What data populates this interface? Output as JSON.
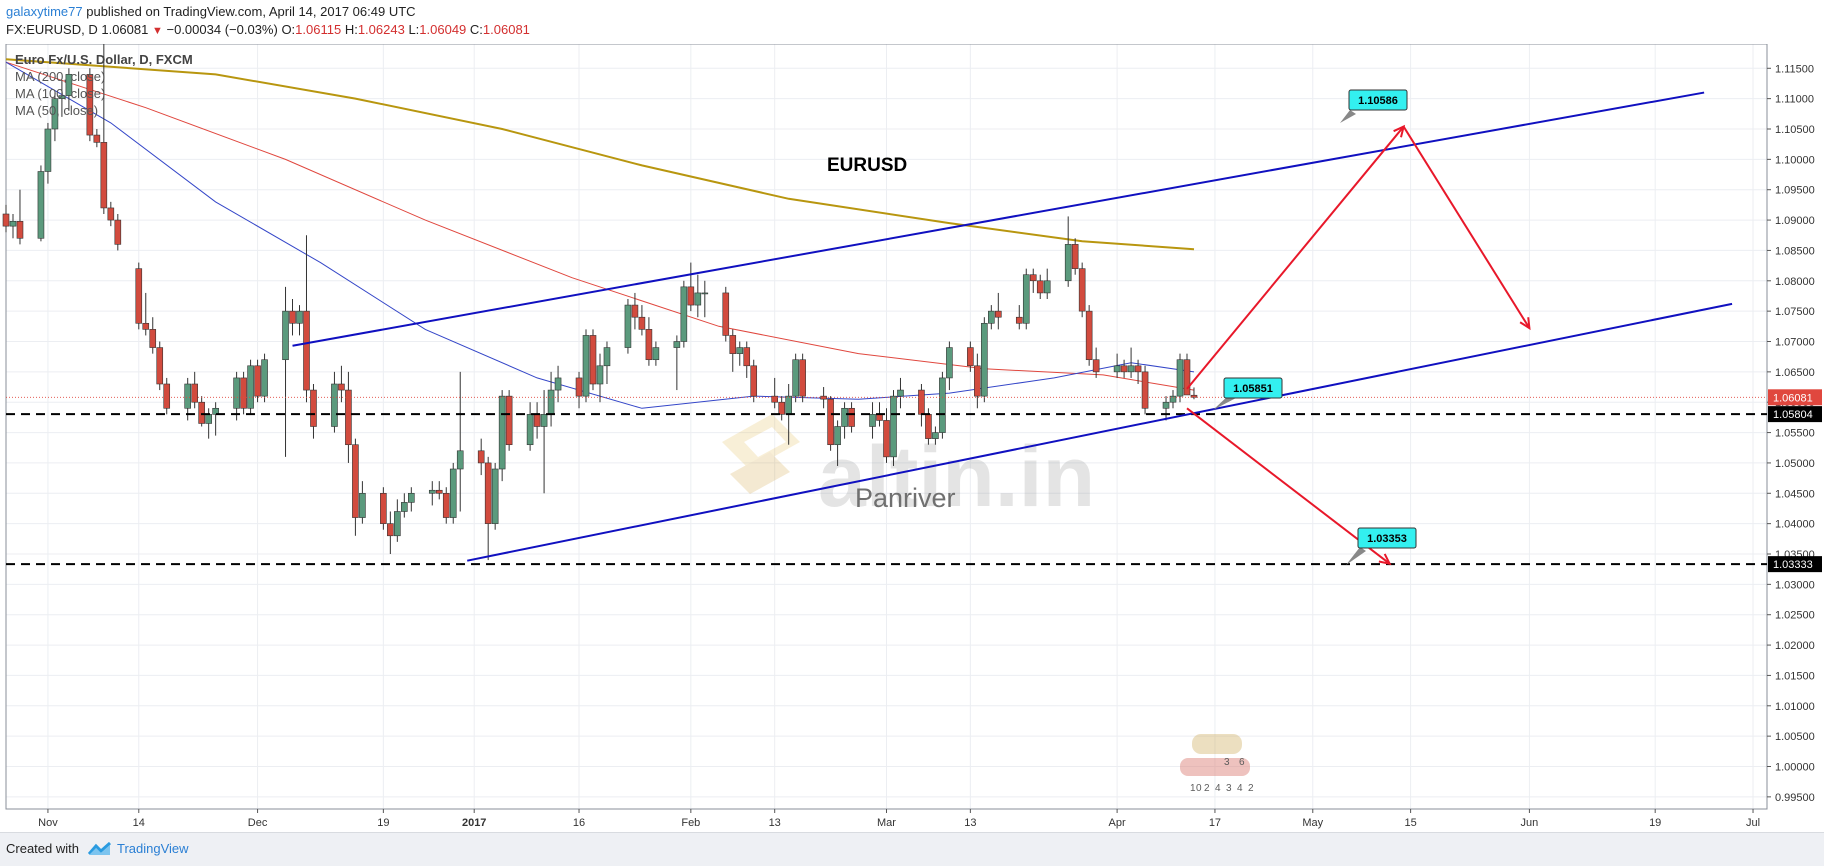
{
  "header": {
    "user": "galaxytime77",
    "published_text": "published on TradingView.com, April 14, 2017 06:49 UTC",
    "symbol": "FX:EURUSD, D",
    "last": "1.06081",
    "change": "−0.00034 (−0.03%)",
    "open_label": "O:",
    "open": "1.06115",
    "high_label": "H:",
    "high": "1.06243",
    "low_label": "L:",
    "low": "1.06049",
    "close_label": "C:",
    "close": "1.06081"
  },
  "legend": {
    "instrument": "Euro Fx/U.S. Dollar, D, FXCM",
    "ma200": "MA (200, close)",
    "ma100": "MA (100, close)",
    "ma50": "MA (50, close)"
  },
  "annotations": {
    "title": "EURUSD",
    "watermark_brand": "altin.in",
    "author": "Panriver",
    "target_high": "1.10586",
    "pivot": "1.05851",
    "target_low": "1.03353",
    "watermark_numbers": [
      "3",
      "6",
      "1",
      "0",
      "2",
      "4",
      "3",
      "4",
      "2"
    ]
  },
  "price_scale": {
    "ticks": [
      "1.11500",
      "1.11000",
      "1.10500",
      "1.10000",
      "1.09500",
      "1.09000",
      "1.08500",
      "1.08000",
      "1.07500",
      "1.07000",
      "1.06500",
      "1.06000",
      "1.05500",
      "1.05000",
      "1.04500",
      "1.04000",
      "1.03500",
      "1.03000",
      "1.02500",
      "1.02000",
      "1.01500",
      "1.01000",
      "1.00500",
      "1.00000",
      "0.99500"
    ],
    "last_price_label": "1.06081",
    "level_upper_label": "1.05804",
    "level_lower_label": "1.03333"
  },
  "time_scale": {
    "labels": [
      "Nov",
      "14",
      "Dec",
      "19",
      "2017",
      "16",
      "Feb",
      "13",
      "Mar",
      "13",
      "Apr",
      "17",
      "May",
      "15",
      "Jun",
      "19",
      "Jul"
    ]
  },
  "colors": {
    "up": "#5b9a7d",
    "down": "#d24b3e",
    "ma200": "#b8960f",
    "ma100": "#e0473e",
    "ma50": "#3446c8",
    "channel": "#1010c0",
    "projection": "#e8182a",
    "callout": "#33f0f0"
  },
  "footer": {
    "created_with": "Created with",
    "brand": "TradingView"
  },
  "chart_data": {
    "type": "candlestick",
    "title": "EURUSD",
    "instrument": "Euro Fx/U.S. Dollar, D, FXCM",
    "ylim": [
      0.993,
      1.119
    ],
    "grid": true,
    "x_start": "2016-10-26",
    "x_end": "2017-07-05",
    "candles": [
      [
        "2016-10-26",
        1.091,
        1.0925,
        1.088,
        1.089
      ],
      [
        "2016-10-27",
        1.089,
        1.091,
        1.087,
        1.0898
      ],
      [
        "2016-10-28",
        1.0898,
        1.095,
        1.086,
        1.087
      ],
      [
        "2016-10-31",
        1.087,
        1.099,
        1.0865,
        1.098
      ],
      [
        "2016-11-01",
        1.098,
        1.106,
        1.096,
        1.105
      ],
      [
        "2016-11-02",
        1.105,
        1.111,
        1.103,
        1.11
      ],
      [
        "2016-11-03",
        1.11,
        1.113,
        1.107,
        1.1105
      ],
      [
        "2016-11-04",
        1.1105,
        1.115,
        1.108,
        1.114
      ],
      [
        "2016-11-07",
        1.114,
        1.115,
        1.103,
        1.104
      ],
      [
        "2016-11-08",
        1.104,
        1.105,
        1.102,
        1.1028
      ],
      [
        "2016-11-09",
        1.1028,
        1.13,
        1.091,
        1.092
      ],
      [
        "2016-11-10",
        1.092,
        1.093,
        1.089,
        1.09
      ],
      [
        "2016-11-11",
        1.09,
        1.091,
        1.085,
        1.086
      ],
      [
        "2016-11-14",
        1.082,
        1.083,
        1.072,
        1.073
      ],
      [
        "2016-11-15",
        1.073,
        1.078,
        1.071,
        1.072
      ],
      [
        "2016-11-16",
        1.072,
        1.074,
        1.068,
        1.069
      ],
      [
        "2016-11-17",
        1.069,
        1.07,
        1.062,
        1.063
      ],
      [
        "2016-11-18",
        1.063,
        1.064,
        1.058,
        1.059
      ],
      [
        "2016-11-21",
        1.059,
        1.064,
        1.057,
        1.063
      ],
      [
        "2016-11-22",
        1.063,
        1.065,
        1.059,
        1.06
      ],
      [
        "2016-11-23",
        1.06,
        1.061,
        1.056,
        1.0565
      ],
      [
        "2016-11-24",
        1.0565,
        1.059,
        1.054,
        1.058
      ],
      [
        "2016-11-25",
        1.058,
        1.06,
        1.0545,
        1.059
      ],
      [
        "2016-11-28",
        1.059,
        1.065,
        1.057,
        1.064
      ],
      [
        "2016-11-29",
        1.064,
        1.065,
        1.058,
        1.059
      ],
      [
        "2016-11-30",
        1.059,
        1.067,
        1.058,
        1.066
      ],
      [
        "2016-12-01",
        1.066,
        1.067,
        1.06,
        1.061
      ],
      [
        "2016-12-02",
        1.061,
        1.068,
        1.06,
        1.067
      ],
      [
        "2016-12-05",
        1.067,
        1.079,
        1.051,
        1.075
      ],
      [
        "2016-12-06",
        1.075,
        1.077,
        1.071,
        1.073
      ],
      [
        "2016-12-07",
        1.073,
        1.076,
        1.071,
        1.075
      ],
      [
        "2016-12-08",
        1.075,
        1.0875,
        1.06,
        1.062
      ],
      [
        "2016-12-09",
        1.062,
        1.063,
        1.054,
        1.056
      ],
      [
        "2016-12-12",
        1.056,
        1.065,
        1.055,
        1.063
      ],
      [
        "2016-12-13",
        1.063,
        1.066,
        1.06,
        1.062
      ],
      [
        "2016-12-14",
        1.062,
        1.065,
        1.05,
        1.053
      ],
      [
        "2016-12-15",
        1.053,
        1.054,
        1.038,
        1.041
      ],
      [
        "2016-12-16",
        1.041,
        1.047,
        1.04,
        1.045
      ],
      [
        "2016-12-19",
        1.045,
        1.046,
        1.039,
        1.04
      ],
      [
        "2016-12-20",
        1.04,
        1.042,
        1.035,
        1.038
      ],
      [
        "2016-12-21",
        1.038,
        1.044,
        1.037,
        1.042
      ],
      [
        "2016-12-22",
        1.042,
        1.045,
        1.041,
        1.0435
      ],
      [
        "2016-12-23",
        1.0435,
        1.046,
        1.042,
        1.045
      ],
      [
        "2016-12-26",
        1.045,
        1.047,
        1.043,
        1.0455
      ],
      [
        "2016-12-27",
        1.0455,
        1.047,
        1.044,
        1.045
      ],
      [
        "2016-12-28",
        1.045,
        1.046,
        1.04,
        1.041
      ],
      [
        "2016-12-29",
        1.041,
        1.05,
        1.04,
        1.049
      ],
      [
        "2016-12-30",
        1.049,
        1.065,
        1.042,
        1.052
      ],
      [
        "2017-01-02",
        1.052,
        1.054,
        1.048,
        1.05
      ],
      [
        "2017-01-03",
        1.05,
        1.051,
        1.034,
        1.04
      ],
      [
        "2017-01-04",
        1.04,
        1.05,
        1.039,
        1.049
      ],
      [
        "2017-01-05",
        1.049,
        1.062,
        1.047,
        1.061
      ],
      [
        "2017-01-06",
        1.061,
        1.062,
        1.052,
        1.053
      ],
      [
        "2017-01-09",
        1.053,
        1.06,
        1.052,
        1.058
      ],
      [
        "2017-01-10",
        1.058,
        1.06,
        1.054,
        1.056
      ],
      [
        "2017-01-11",
        1.056,
        1.062,
        1.045,
        1.058
      ],
      [
        "2017-01-12",
        1.058,
        1.065,
        1.056,
        1.062
      ],
      [
        "2017-01-13",
        1.062,
        1.066,
        1.06,
        1.064
      ],
      [
        "2017-01-16",
        1.064,
        1.065,
        1.059,
        1.061
      ],
      [
        "2017-01-17",
        1.061,
        1.072,
        1.06,
        1.071
      ],
      [
        "2017-01-18",
        1.071,
        1.072,
        1.062,
        1.063
      ],
      [
        "2017-01-19",
        1.063,
        1.068,
        1.06,
        1.066
      ],
      [
        "2017-01-20",
        1.066,
        1.07,
        1.063,
        1.069
      ],
      [
        "2017-01-23",
        1.069,
        1.077,
        1.068,
        1.076
      ],
      [
        "2017-01-24",
        1.076,
        1.078,
        1.072,
        1.074
      ],
      [
        "2017-01-25",
        1.074,
        1.076,
        1.071,
        1.072
      ],
      [
        "2017-01-26",
        1.072,
        1.074,
        1.066,
        1.067
      ],
      [
        "2017-01-27",
        1.067,
        1.07,
        1.066,
        1.069
      ],
      [
        "2017-01-30",
        1.069,
        1.071,
        1.062,
        1.07
      ],
      [
        "2017-01-31",
        1.07,
        1.08,
        1.069,
        1.079
      ],
      [
        "2017-02-01",
        1.079,
        1.083,
        1.075,
        1.076
      ],
      [
        "2017-02-02",
        1.076,
        1.081,
        1.074,
        1.078
      ],
      [
        "2017-02-03",
        1.078,
        1.08,
        1.074,
        1.078
      ],
      [
        "2017-02-06",
        1.078,
        1.079,
        1.07,
        1.071
      ],
      [
        "2017-02-07",
        1.071,
        1.072,
        1.065,
        1.068
      ],
      [
        "2017-02-08",
        1.068,
        1.07,
        1.066,
        1.069
      ],
      [
        "2017-02-09",
        1.069,
        1.07,
        1.064,
        1.066
      ],
      [
        "2017-02-10",
        1.066,
        1.067,
        1.06,
        1.061
      ],
      [
        "2017-02-13",
        1.061,
        1.064,
        1.059,
        1.06
      ],
      [
        "2017-02-14",
        1.06,
        1.061,
        1.057,
        1.058
      ],
      [
        "2017-02-15",
        1.058,
        1.063,
        1.053,
        1.061
      ],
      [
        "2017-02-16",
        1.061,
        1.068,
        1.06,
        1.067
      ],
      [
        "2017-02-17",
        1.067,
        1.068,
        1.06,
        1.061
      ],
      [
        "2017-02-20",
        1.061,
        1.0625,
        1.059,
        1.0605
      ],
      [
        "2017-02-21",
        1.0605,
        1.061,
        1.052,
        1.053
      ],
      [
        "2017-02-22",
        1.053,
        1.057,
        1.0495,
        1.056
      ],
      [
        "2017-02-23",
        1.056,
        1.06,
        1.054,
        1.059
      ],
      [
        "2017-02-24",
        1.059,
        1.06,
        1.055,
        1.056
      ],
      [
        "2017-02-27",
        1.056,
        1.06,
        1.054,
        1.058
      ],
      [
        "2017-02-28",
        1.058,
        1.06,
        1.056,
        1.057
      ],
      [
        "2017-03-01",
        1.057,
        1.059,
        1.05,
        1.051
      ],
      [
        "2017-03-02",
        1.051,
        1.062,
        1.0495,
        1.061
      ],
      [
        "2017-03-03",
        1.061,
        1.064,
        1.059,
        1.062
      ],
      [
        "2017-03-06",
        1.062,
        1.063,
        1.056,
        1.058
      ],
      [
        "2017-03-07",
        1.058,
        1.059,
        1.053,
        1.054
      ],
      [
        "2017-03-08",
        1.054,
        1.056,
        1.053,
        1.055
      ],
      [
        "2017-03-09",
        1.055,
        1.065,
        1.054,
        1.064
      ],
      [
        "2017-03-10",
        1.064,
        1.07,
        1.062,
        1.069
      ],
      [
        "2017-03-13",
        1.069,
        1.07,
        1.065,
        1.066
      ],
      [
        "2017-03-14",
        1.066,
        1.068,
        1.059,
        1.061
      ],
      [
        "2017-03-15",
        1.061,
        1.074,
        1.06,
        1.073
      ],
      [
        "2017-03-16",
        1.073,
        1.076,
        1.072,
        1.075
      ],
      [
        "2017-03-17",
        1.075,
        1.078,
        1.072,
        1.074
      ],
      [
        "2017-03-20",
        1.074,
        1.076,
        1.072,
        1.073
      ],
      [
        "2017-03-21",
        1.073,
        1.082,
        1.072,
        1.081
      ],
      [
        "2017-03-22",
        1.081,
        1.082,
        1.078,
        1.08
      ],
      [
        "2017-03-23",
        1.08,
        1.081,
        1.077,
        1.078
      ],
      [
        "2017-03-24",
        1.078,
        1.082,
        1.077,
        1.08
      ],
      [
        "2017-03-27",
        1.08,
        1.0906,
        1.079,
        1.086
      ],
      [
        "2017-03-28",
        1.086,
        1.087,
        1.081,
        1.082
      ],
      [
        "2017-03-29",
        1.082,
        1.083,
        1.074,
        1.075
      ],
      [
        "2017-03-30",
        1.075,
        1.076,
        1.066,
        1.067
      ],
      [
        "2017-03-31",
        1.067,
        1.069,
        1.064,
        1.065
      ],
      [
        "2017-04-03",
        1.065,
        1.068,
        1.064,
        1.066
      ],
      [
        "2017-04-04",
        1.066,
        1.067,
        1.064,
        1.065
      ],
      [
        "2017-04-05",
        1.065,
        1.069,
        1.064,
        1.066
      ],
      [
        "2017-04-06",
        1.066,
        1.067,
        1.063,
        1.065
      ],
      [
        "2017-04-07",
        1.065,
        1.066,
        1.058,
        1.059
      ],
      [
        "2017-04-10",
        1.059,
        1.061,
        1.057,
        1.06
      ],
      [
        "2017-04-11",
        1.06,
        1.062,
        1.059,
        1.061
      ],
      [
        "2017-04-12",
        1.061,
        1.068,
        1.06,
        1.067
      ],
      [
        "2017-04-13",
        1.067,
        1.068,
        1.062,
        1.0612
      ],
      [
        "2017-04-14",
        1.06115,
        1.06243,
        1.06049,
        1.06081
      ]
    ],
    "ma200": [
      [
        "2016-10-26",
        1.1165
      ],
      [
        "2016-11-25",
        1.114
      ],
      [
        "2016-12-15",
        1.11
      ],
      [
        "2017-01-05",
        1.105
      ],
      [
        "2017-01-25",
        1.099
      ],
      [
        "2017-02-15",
        1.0935
      ],
      [
        "2017-03-10",
        1.0895
      ],
      [
        "2017-03-29",
        1.0865
      ],
      [
        "2017-04-14",
        1.0852
      ]
    ],
    "ma100": [
      [
        "2016-10-26",
        1.116
      ],
      [
        "2016-11-15",
        1.1085
      ],
      [
        "2016-12-05",
        1.1
      ],
      [
        "2016-12-25",
        1.09
      ],
      [
        "2017-01-15",
        1.0805
      ],
      [
        "2017-02-05",
        1.0725
      ],
      [
        "2017-02-25",
        1.068
      ],
      [
        "2017-03-15",
        1.0655
      ],
      [
        "2017-04-01",
        1.0645
      ],
      [
        "2017-04-14",
        1.062
      ]
    ],
    "ma50": [
      [
        "2016-10-26",
        1.116
      ],
      [
        "2016-11-10",
        1.106
      ],
      [
        "2016-11-25",
        1.093
      ],
      [
        "2016-12-10",
        1.083
      ],
      [
        "2016-12-25",
        1.072
      ],
      [
        "2017-01-10",
        1.064
      ],
      [
        "2017-01-25",
        1.059
      ],
      [
        "2017-02-10",
        1.061
      ],
      [
        "2017-02-25",
        1.0605
      ],
      [
        "2017-03-10",
        1.0615
      ],
      [
        "2017-03-25",
        1.064
      ],
      [
        "2017-04-05",
        1.0665
      ],
      [
        "2017-04-14",
        1.065
      ]
    ],
    "trendlines": [
      {
        "name": "channel-upper",
        "from": [
          "2016-12-06",
          1.0693
        ],
        "to": [
          "2017-06-26",
          1.111
        ]
      },
      {
        "name": "channel-lower",
        "from": [
          "2016-12-31",
          1.0339
        ],
        "to": [
          "2017-06-30",
          1.0762
        ]
      },
      {
        "name": "projection-up-1",
        "from": [
          "2017-04-13",
          1.0622
        ],
        "to": [
          "2017-05-14",
          1.1054
        ]
      },
      {
        "name": "projection-up-2",
        "from": [
          "2017-05-14",
          1.1054
        ],
        "to": [
          "2017-06-01",
          1.0722
        ]
      },
      {
        "name": "projection-down",
        "from": [
          "2017-04-13",
          1.059
        ],
        "to": [
          "2017-05-12",
          1.0334
        ]
      }
    ],
    "horizontal_levels": [
      1.05804,
      1.03333
    ],
    "last_price": 1.06081
  }
}
